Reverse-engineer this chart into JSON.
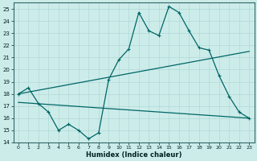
{
  "xlabel": "Humidex (Indice chaleur)",
  "xlim": [
    -0.5,
    23.5
  ],
  "ylim": [
    14,
    25.5
  ],
  "yticks": [
    14,
    15,
    16,
    17,
    18,
    19,
    20,
    21,
    22,
    23,
    24,
    25
  ],
  "xticks": [
    0,
    1,
    2,
    3,
    4,
    5,
    6,
    7,
    8,
    9,
    10,
    11,
    12,
    13,
    14,
    15,
    16,
    17,
    18,
    19,
    20,
    21,
    22,
    23
  ],
  "bg_color": "#ccecea",
  "line_color": "#006666",
  "grid_color": "#b0d8d5",
  "jagged_x": [
    0,
    1,
    2,
    3,
    4,
    5,
    6,
    7,
    8,
    9,
    10,
    11,
    12,
    13,
    14,
    15,
    16,
    17,
    18,
    19,
    20,
    21,
    22,
    23
  ],
  "jagged_y": [
    18.0,
    18.5,
    17.2,
    16.5,
    15.0,
    15.5,
    15.0,
    14.3,
    14.8,
    19.2,
    20.8,
    21.7,
    24.7,
    23.2,
    22.8,
    25.2,
    24.7,
    23.2,
    21.8,
    21.6,
    19.5,
    17.8,
    16.5,
    16.0
  ],
  "upper_trend_x": [
    0,
    23
  ],
  "upper_trend_y": [
    18.0,
    21.5
  ],
  "lower_trend_x": [
    0,
    23
  ],
  "lower_trend_y": [
    17.3,
    16.0
  ]
}
